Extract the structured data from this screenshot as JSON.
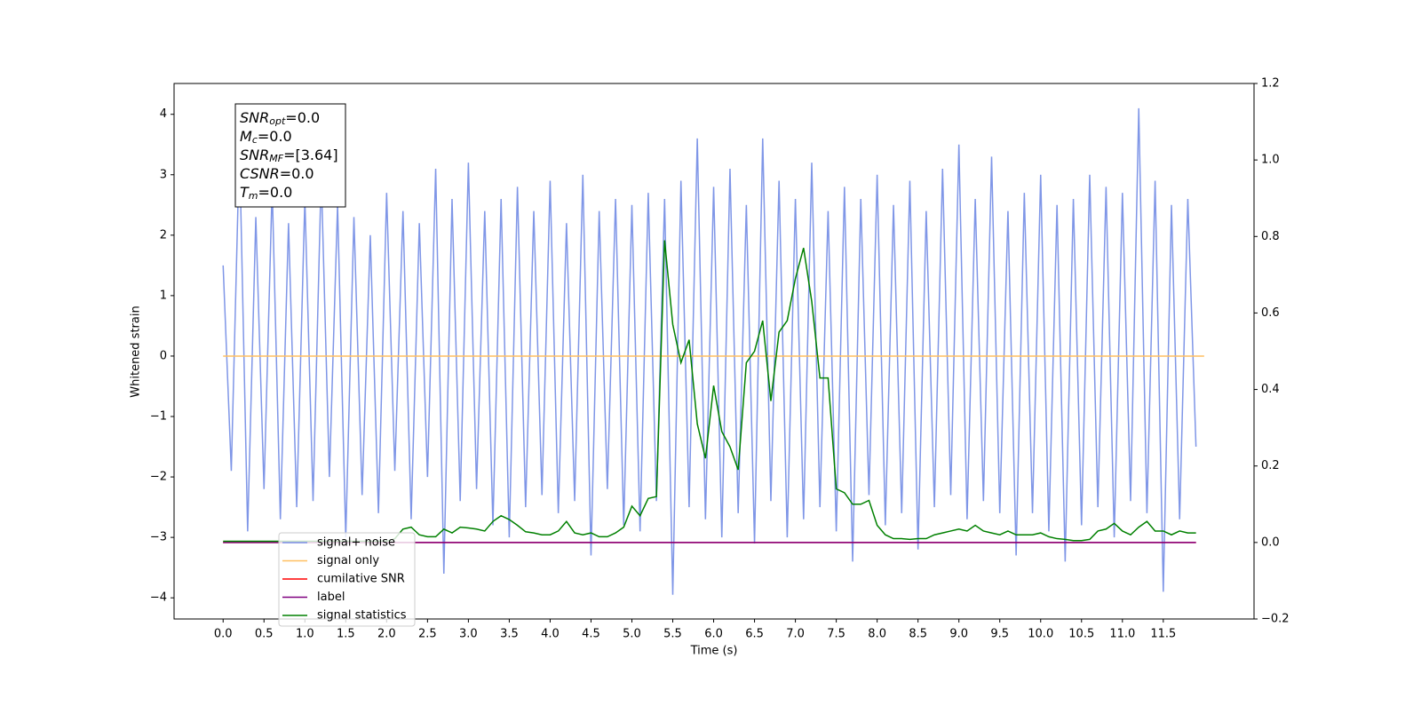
{
  "chart_data": {
    "type": "line",
    "xlabel": "Time (s)",
    "ylabel": "Whitened strain",
    "xlim": [
      -0.6,
      12.61
    ],
    "ylim": [
      -4.35,
      4.51
    ],
    "y2lim": [
      -0.2,
      1.2
    ],
    "xticks": [
      {
        "value": 0,
        "label": "0.0"
      },
      0.5,
      {
        "value": 1,
        "label": "1.0"
      },
      1.5,
      {
        "value": 2,
        "label": "2.0"
      },
      2.5,
      {
        "value": 3,
        "label": "3.0"
      },
      3.5,
      {
        "value": 4,
        "label": "4.0"
      },
      4.5,
      {
        "value": 5,
        "label": "5.0"
      },
      5.5,
      {
        "value": 6,
        "label": "6.0"
      },
      6.5,
      {
        "value": 7,
        "label": "7.0"
      },
      7.5,
      {
        "value": 8,
        "label": "8.0"
      },
      8.5,
      {
        "value": 9,
        "label": "9.0"
      },
      9.5,
      {
        "value": 10,
        "label": "10.0"
      },
      10.5,
      {
        "value": 11,
        "label": "11.0"
      },
      11.5
    ],
    "yticks": [
      {
        "value": -4,
        "label": "−4"
      },
      {
        "value": -3,
        "label": "−3"
      },
      {
        "value": -2,
        "label": "−2"
      },
      {
        "value": -1,
        "label": "−1"
      },
      0,
      1,
      2,
      3,
      4
    ],
    "y2ticks": [
      {
        "value": -0.2,
        "label": "−0.2"
      },
      {
        "value": 0,
        "label": "0.0"
      },
      0.2,
      0.4,
      0.6,
      0.8,
      {
        "value": 1,
        "label": "1.0"
      },
      1.2
    ],
    "legend": "lower left",
    "annotation": [
      {
        "symbol": "SNR",
        "sub": "opt",
        "text": "=0.0"
      },
      {
        "symbol": "M",
        "sub": "c",
        "text": "=0.0"
      },
      {
        "symbol": "SNR",
        "sub": "MF",
        "text": "=[3.64]"
      },
      {
        "symbol": "CSNR",
        "sub": null,
        "text": "=0.0"
      },
      {
        "symbol": "T",
        "sub": "m",
        "text": "=0.0"
      }
    ],
    "x": [
      0,
      0.1,
      0.2,
      0.3,
      0.4,
      0.5,
      0.6,
      0.7,
      0.8,
      0.9,
      1,
      1.1,
      1.2,
      1.3,
      1.4,
      1.5,
      1.6,
      1.7,
      1.8,
      1.9,
      2,
      2.1,
      2.2,
      2.3,
      2.4,
      2.5,
      2.6,
      2.7,
      2.8,
      2.9,
      3,
      3.1,
      3.2,
      3.3,
      3.4,
      3.5,
      3.6,
      3.7,
      3.8,
      3.9,
      4,
      4.1,
      4.2,
      4.3,
      4.4,
      4.5,
      4.6,
      4.7,
      4.8,
      4.9,
      5,
      5.1,
      5.2,
      5.3,
      5.4,
      5.5,
      5.6,
      5.7,
      5.8,
      5.9,
      6,
      6.1,
      6.2,
      6.3,
      6.4,
      6.5,
      6.6,
      6.7,
      6.8,
      6.9,
      7,
      7.1,
      7.2,
      7.3,
      7.4,
      7.5,
      7.6,
      7.7,
      7.8,
      7.9,
      8,
      8.1,
      8.2,
      8.3,
      8.4,
      8.5,
      8.6,
      8.7,
      8.8,
      8.9,
      9,
      9.1,
      9.2,
      9.3,
      9.4,
      9.5,
      9.6,
      9.7,
      9.8,
      9.9,
      10,
      10.1,
      10.2,
      10.3,
      10.4,
      10.5,
      10.6,
      10.7,
      10.8,
      10.9,
      11,
      11.1,
      11.2,
      11.3,
      11.4,
      11.5,
      11.6,
      11.7,
      11.8,
      11.9
    ],
    "series": [
      {
        "name": "signal+ noise",
        "color": "#7890e6",
        "values": [
          1.5,
          -1.9,
          3.5,
          -2.9,
          2.3,
          -2.2,
          2.8,
          -2.7,
          2.2,
          -2.5,
          2.6,
          -2.4,
          3.0,
          -2.0,
          2.5,
          -3.0,
          2.3,
          -2.3,
          2.0,
          -2.6,
          2.7,
          -1.9,
          2.4,
          -2.7,
          2.2,
          -2.0,
          3.1,
          -3.6,
          2.6,
          -2.4,
          3.2,
          -2.2,
          2.4,
          -2.8,
          2.6,
          -3.0,
          2.8,
          -2.5,
          2.4,
          -2.3,
          2.9,
          -2.6,
          2.2,
          -2.4,
          3.0,
          -3.3,
          2.4,
          -2.2,
          2.6,
          -2.8,
          2.5,
          -2.9,
          2.7,
          -2.4,
          2.6,
          -3.95,
          2.9,
          -2.5,
          3.6,
          -2.7,
          2.8,
          -3.0,
          3.1,
          -2.6,
          2.5,
          -3.1,
          3.6,
          -2.4,
          2.9,
          -3.0,
          2.6,
          -2.7,
          3.2,
          -2.5,
          2.4,
          -2.9,
          2.8,
          -3.4,
          2.6,
          -2.3,
          3.0,
          -2.8,
          2.5,
          -2.6,
          2.9,
          -3.2,
          2.4,
          -2.5,
          3.1,
          -2.3,
          3.5,
          -2.7,
          2.6,
          -2.4,
          3.3,
          -2.6,
          2.4,
          -3.3,
          2.7,
          -2.6,
          3.0,
          -2.9,
          2.5,
          -3.4,
          2.6,
          -2.8,
          3.0,
          -2.5,
          2.8,
          -3.0,
          2.7,
          -2.4,
          4.1,
          -2.6,
          2.9,
          -3.9,
          2.5,
          -2.7,
          2.6,
          -1.5
        ]
      },
      {
        "name": "signal only",
        "color": "#ffbf60",
        "x": [
          0,
          12
        ],
        "values": [
          0,
          0
        ]
      },
      {
        "name": "cumilative SNR",
        "color": "#ff0000",
        "axis": "y2",
        "x": [
          0,
          11.9
        ],
        "values": [
          0,
          0
        ]
      },
      {
        "name": "label",
        "color": "#800080",
        "axis": "y2",
        "x": [
          0,
          11.9
        ],
        "values": [
          0,
          0
        ]
      },
      {
        "name": "signal statistics",
        "color": "#008000",
        "axis": "y2",
        "values": [
          0.003,
          0.003,
          0.003,
          0.003,
          0.003,
          0.003,
          0.003,
          0.003,
          0.003,
          0.003,
          0.003,
          0.003,
          0.003,
          0.003,
          0.003,
          0.003,
          0.003,
          0.003,
          0.003,
          0.003,
          0.003,
          0.01,
          0.035,
          0.04,
          0.02,
          0.015,
          0.015,
          0.035,
          0.025,
          0.04,
          0.038,
          0.035,
          0.03,
          0.055,
          0.07,
          0.06,
          0.045,
          0.028,
          0.025,
          0.02,
          0.02,
          0.03,
          0.055,
          0.025,
          0.02,
          0.025,
          0.015,
          0.015,
          0.025,
          0.04,
          0.095,
          0.07,
          0.115,
          0.12,
          0.79,
          0.57,
          0.47,
          0.53,
          0.31,
          0.22,
          0.41,
          0.29,
          0.25,
          0.19,
          0.47,
          0.5,
          0.58,
          0.37,
          0.55,
          0.58,
          0.69,
          0.77,
          0.63,
          0.43,
          0.43,
          0.14,
          0.13,
          0.1,
          0.1,
          0.11,
          0.045,
          0.02,
          0.01,
          0.01,
          0.008,
          0.01,
          0.01,
          0.02,
          0.025,
          0.03,
          0.035,
          0.03,
          0.045,
          0.03,
          0.025,
          0.02,
          0.03,
          0.02,
          0.02,
          0.02,
          0.025,
          0.015,
          0.01,
          0.008,
          0.005,
          0.005,
          0.008,
          0.03,
          0.035,
          0.05,
          0.03,
          0.02,
          0.04,
          0.055,
          0.03,
          0.03,
          0.02,
          0.03,
          0.025,
          0.025
        ]
      }
    ]
  }
}
